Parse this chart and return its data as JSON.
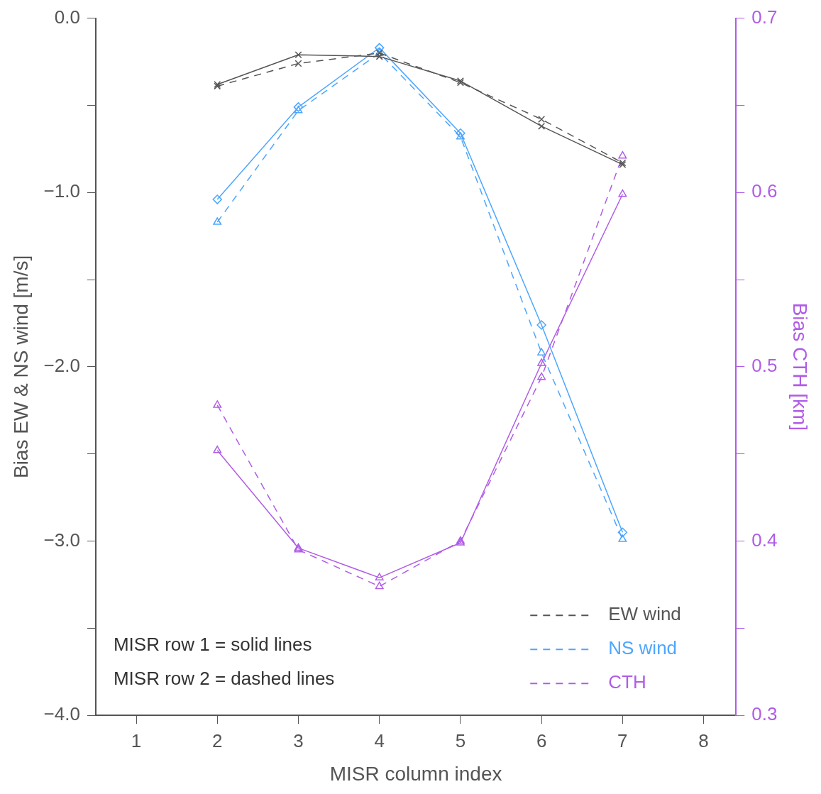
{
  "chart_data": {
    "type": "line",
    "xlabel": "MISR column index",
    "ylabel": "Bias EW & NS wind [m/s]",
    "y2label": "Bias CTH [km]",
    "x": [
      2,
      3,
      4,
      5,
      6,
      7
    ],
    "xlim": [
      0.5,
      8.4
    ],
    "xticks": [
      1,
      2,
      3,
      4,
      5,
      6,
      7,
      8
    ],
    "ylim": [
      -4,
      0
    ],
    "yticks": [
      {
        "value": -4,
        "label": "−4.0"
      },
      {
        "value": -3.5,
        "label": null
      },
      {
        "value": -3,
        "label": "−3.0"
      },
      {
        "value": -2.5,
        "label": null
      },
      {
        "value": -2,
        "label": "−2.0"
      },
      {
        "value": -1.5,
        "label": null
      },
      {
        "value": -1,
        "label": "−1.0"
      },
      {
        "value": -0.5,
        "label": null
      },
      {
        "value": 0,
        "label": "0.0"
      }
    ],
    "y2lim": [
      0.3,
      0.7
    ],
    "y2ticks": [
      0.3,
      {
        "value": 0.35,
        "label": null
      },
      0.4,
      {
        "value": 0.45,
        "label": null
      },
      0.5,
      {
        "value": 0.55,
        "label": null
      },
      0.6,
      {
        "value": 0.65,
        "label": null
      },
      0.7
    ],
    "grid": false,
    "legend": "bottom right",
    "series": [
      {
        "color": "#555555",
        "values": [
          -0.38,
          -0.21,
          -0.22,
          -0.36,
          -0.62,
          -0.84
        ],
        "line_style": "solid",
        "marker": "cross"
      },
      {
        "name": "EW wind",
        "color": "#555555",
        "values": [
          -0.39,
          -0.26,
          -0.2,
          -0.37,
          -0.58,
          -0.83
        ],
        "line_style": "dashed",
        "marker": "cross"
      },
      {
        "color": "#4da6ff",
        "values": [
          -1.04,
          -0.51,
          -0.17,
          -0.66,
          -1.76,
          -2.95
        ],
        "line_style": "solid",
        "marker": "diamond"
      },
      {
        "name": "NS wind",
        "color": "#4da6ff",
        "values": [
          -1.17,
          -0.53,
          -0.2,
          -0.68,
          -1.92,
          -2.99
        ],
        "line_style": "dashed",
        "marker": "triangle"
      },
      {
        "color": "#b05ce6",
        "values": [
          0.452,
          0.396,
          0.379,
          0.399,
          0.502,
          0.599
        ],
        "line_style": "solid",
        "marker": "triangle",
        "axis": "y2"
      },
      {
        "name": "CTH",
        "color": "#b05ce6",
        "values": [
          0.478,
          0.395,
          0.374,
          0.4,
          0.494,
          0.621
        ],
        "line_style": "dashed",
        "marker": "triangle",
        "axis": "y2"
      }
    ],
    "annotations": [
      "MISR row 1 = solid lines",
      "MISR row 2 = dashed lines"
    ]
  }
}
